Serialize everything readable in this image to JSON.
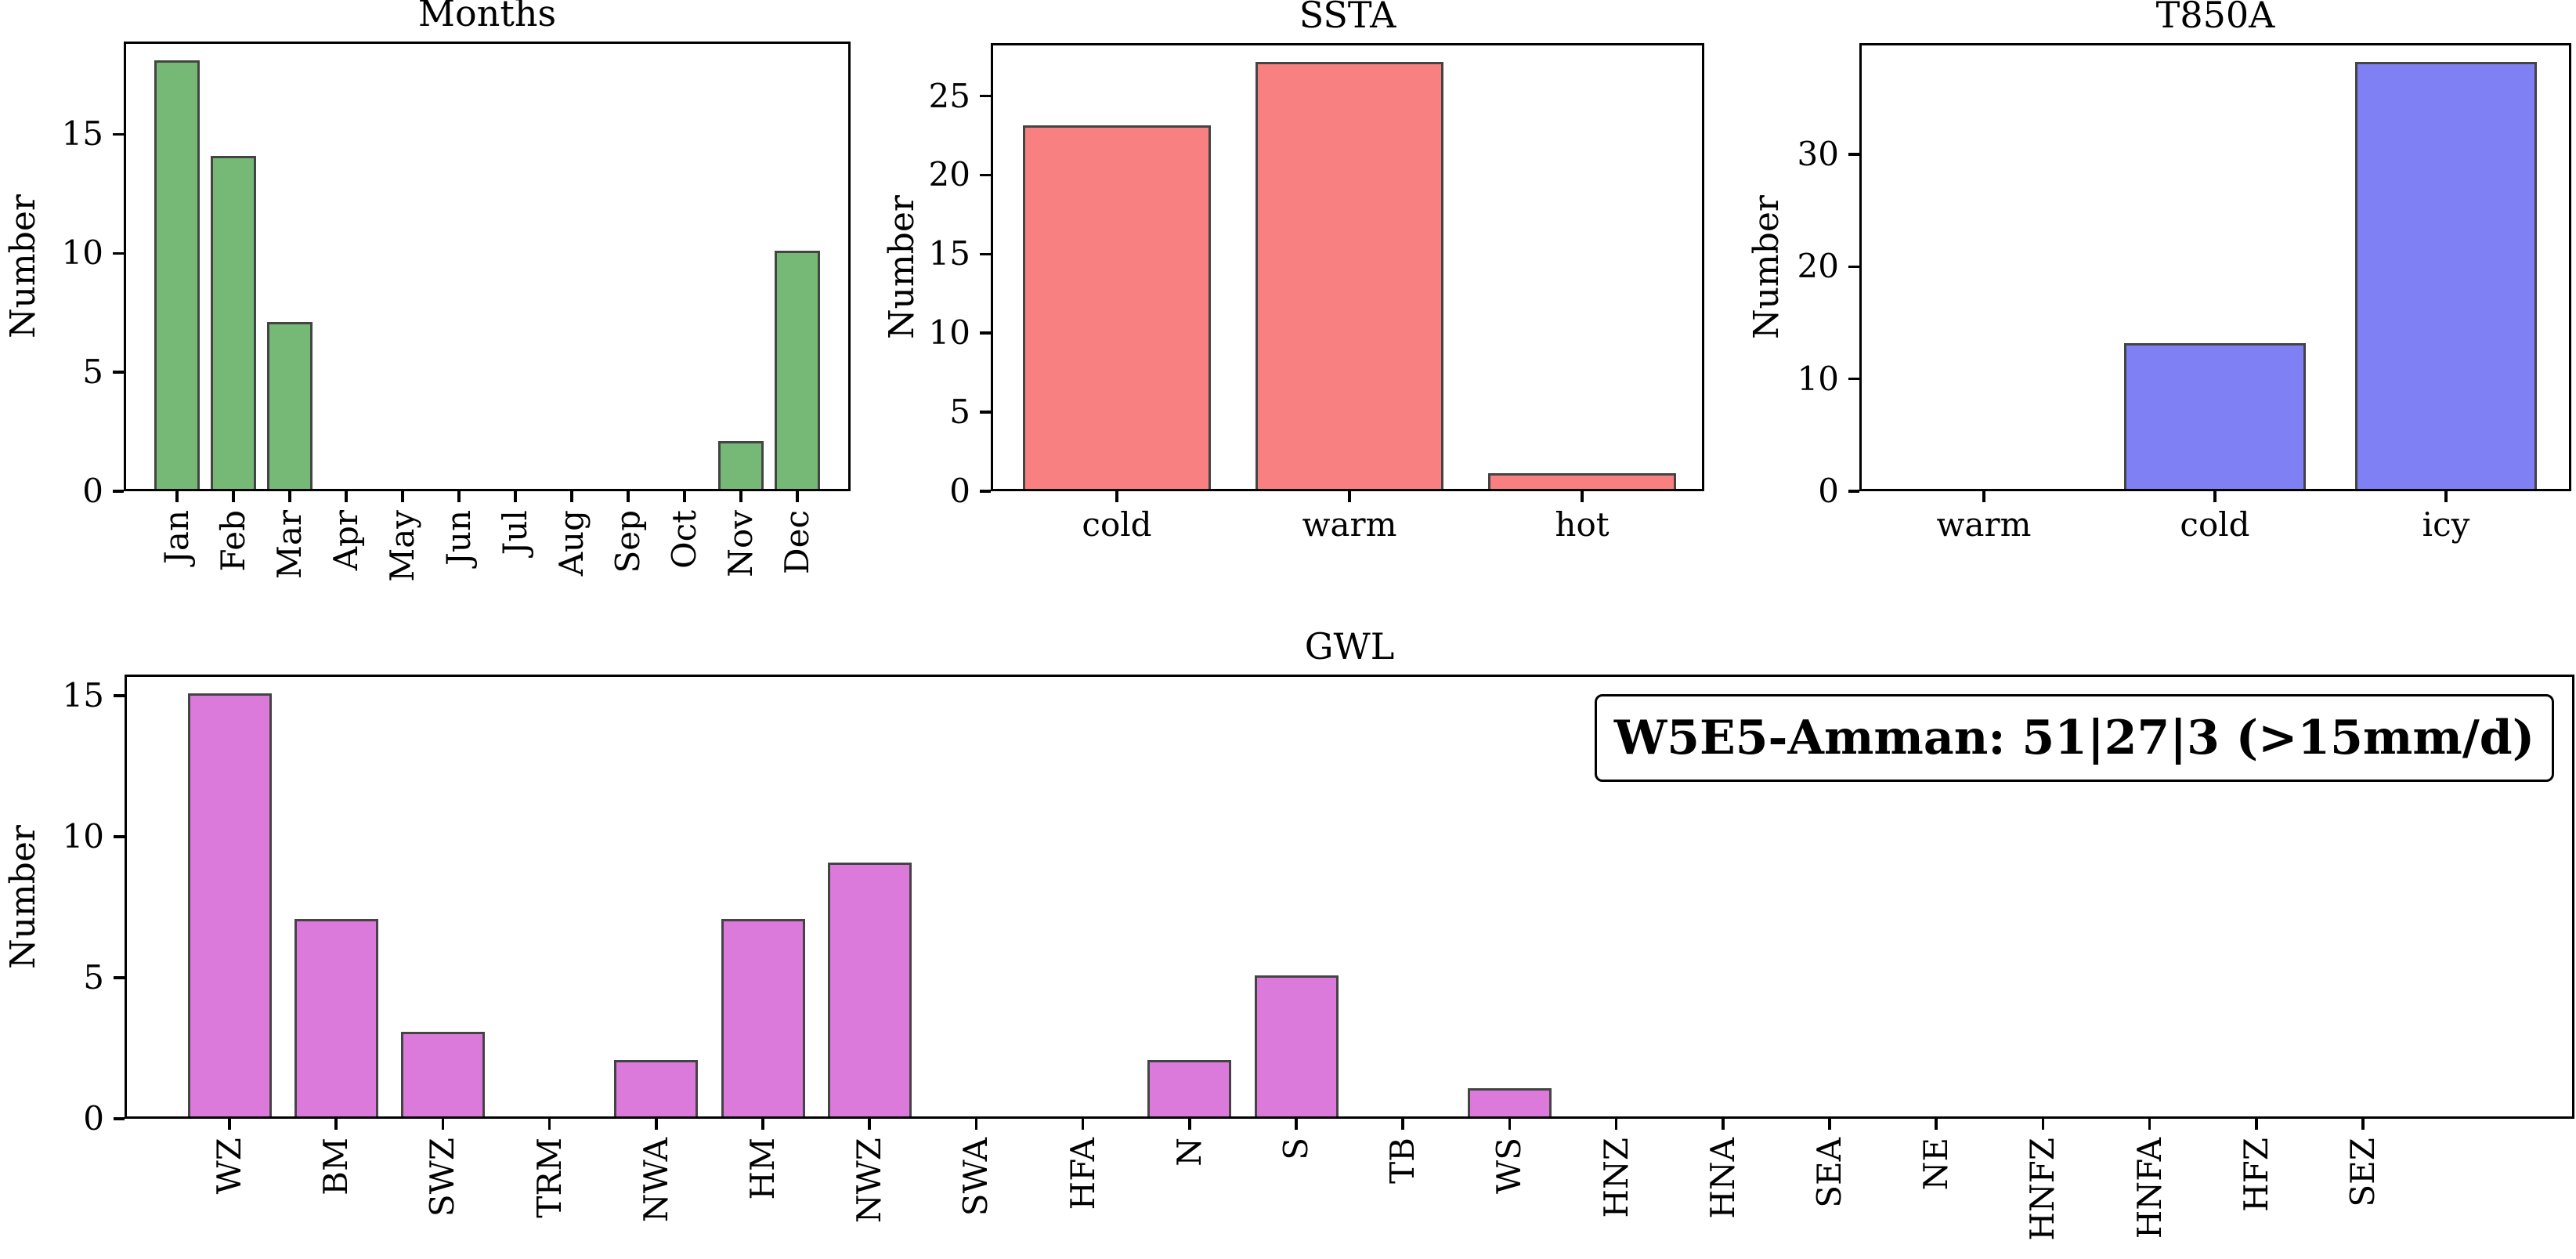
{
  "figure": {
    "background": "#ffffff",
    "text_color": "#000000",
    "axis_color": "#000000",
    "bar_edge_color": "#444444"
  },
  "annotation": {
    "text": "W5E5-Amman: 51|27|3 (>15mm/d)"
  },
  "chart_data": [
    {
      "id": "months",
      "type": "bar",
      "title": "Months",
      "xlabel": "",
      "ylabel": "Number",
      "categories": [
        "Jan",
        "Feb",
        "Mar",
        "Apr",
        "May",
        "Jun",
        "Jul",
        "Aug",
        "Sep",
        "Oct",
        "Nov",
        "Dec"
      ],
      "values": [
        18,
        14,
        7,
        0,
        0,
        0,
        0,
        0,
        0,
        0,
        2,
        10
      ],
      "yticks": [
        0,
        5,
        10,
        15
      ],
      "ylim": [
        0,
        18.9
      ],
      "bar_color": "#76b876",
      "xtick_rotation": 90,
      "grid": false,
      "legend": "none"
    },
    {
      "id": "ssta",
      "type": "bar",
      "title": "SSTA",
      "xlabel": "",
      "ylabel": "Number",
      "categories": [
        "cold",
        "warm",
        "hot"
      ],
      "values": [
        23,
        27,
        1
      ],
      "yticks": [
        0,
        5,
        10,
        15,
        20,
        25
      ],
      "ylim": [
        0,
        28.35
      ],
      "bar_color": "#f98080",
      "xtick_rotation": 0,
      "grid": false,
      "legend": "none"
    },
    {
      "id": "t850a",
      "type": "bar",
      "title": "T850A",
      "xlabel": "",
      "ylabel": "Number",
      "categories": [
        "warm",
        "cold",
        "icy"
      ],
      "values": [
        0,
        13,
        38
      ],
      "yticks": [
        0,
        10,
        20,
        30
      ],
      "ylim": [
        0,
        39.9
      ],
      "bar_color": "#8080f5",
      "xtick_rotation": 0,
      "grid": false,
      "legend": "none"
    },
    {
      "id": "gwl",
      "type": "bar",
      "title": "GWL",
      "xlabel": "",
      "ylabel": "Number",
      "categories": [
        "WZ",
        "BM",
        "SWZ",
        "TRM",
        "NWA",
        "HM",
        "NWZ",
        "SWA",
        "HFA",
        "N",
        "S",
        "TB",
        "WS",
        "HNZ",
        "HNA",
        "SEA",
        "NE",
        "HNFZ",
        "HNFA",
        "HFZ",
        "SEZ"
      ],
      "values": [
        15,
        7,
        3,
        0,
        2,
        7,
        9,
        0,
        0,
        2,
        5,
        0,
        1,
        0,
        0,
        0,
        0,
        0,
        0,
        0,
        0
      ],
      "yticks": [
        0,
        5,
        10,
        15
      ],
      "ylim": [
        0,
        15.75
      ],
      "bar_color": "#dc7adc",
      "xtick_rotation": 90,
      "grid": false,
      "legend": "none",
      "annotation": "W5E5-Amman: 51|27|3 (>15mm/d)"
    }
  ]
}
